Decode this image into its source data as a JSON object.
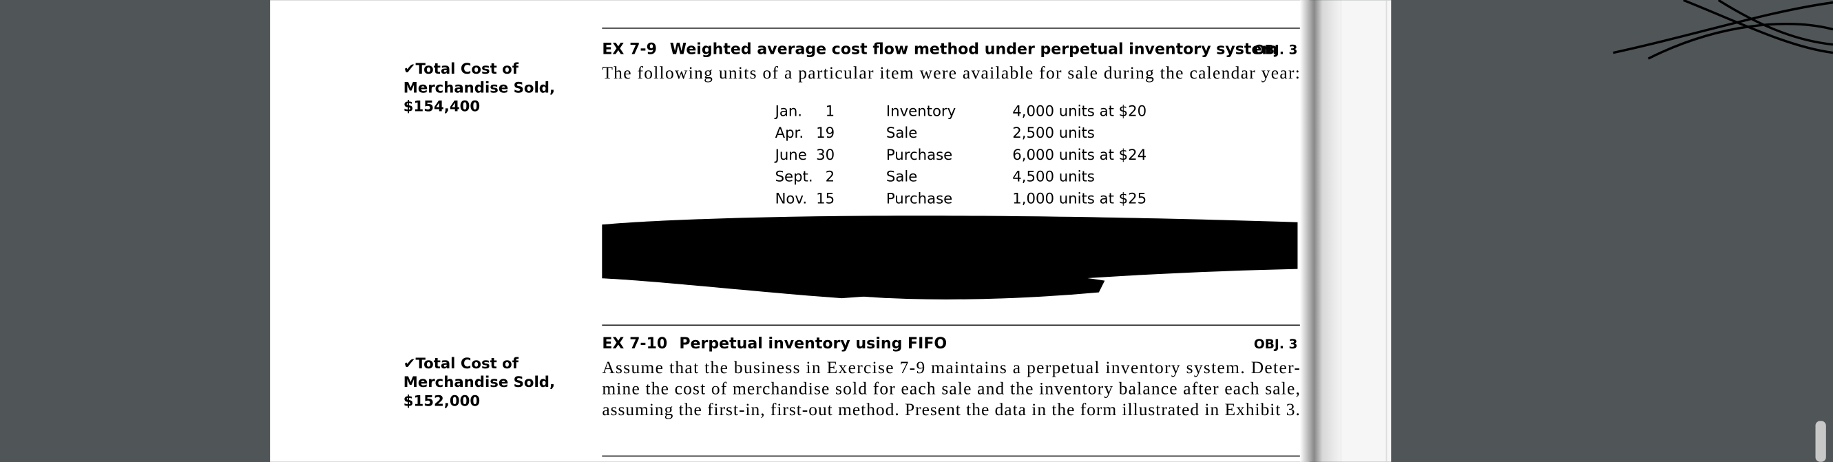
{
  "exercises": [
    {
      "number": "EX 7-9",
      "title": "Weighted average cost flow method under perpetual inventory system",
      "obj": "OBJ. 3",
      "note": [
        "✔Total Cost of",
        "Merchandise Sold,",
        "$154,400"
      ],
      "body": [
        "The following units of a particular item were available for sale during the calendar year:"
      ],
      "table": [
        [
          "Jan.",
          "1",
          "Inventory",
          "4,000 units at $20"
        ],
        [
          "Apr.",
          "19",
          "Sale",
          "2,500 units"
        ],
        [
          "June",
          "30",
          "Purchase",
          "6,000 units at $24"
        ],
        [
          "Sept.",
          "2",
          "Sale",
          "4,500 units"
        ],
        [
          "Nov.",
          "15",
          "Purchase",
          "1,000 units at $25"
        ]
      ]
    },
    {
      "number": "EX 7-10",
      "title": "Perpetual inventory using FIFO",
      "obj": "OBJ. 3",
      "note": [
        "✔Total Cost of",
        "Merchandise Sold,",
        "$152,000"
      ],
      "body": [
        "Assume that the business in Exercise 7-9 maintains a perpetual inventory system. Deter-",
        "mine the cost of merchandise sold for each sale and the inventory balance after each sale,",
        "assuming the first-in, first-out method. Present the data in the form illustrated in Exhibit 3."
      ]
    }
  ]
}
